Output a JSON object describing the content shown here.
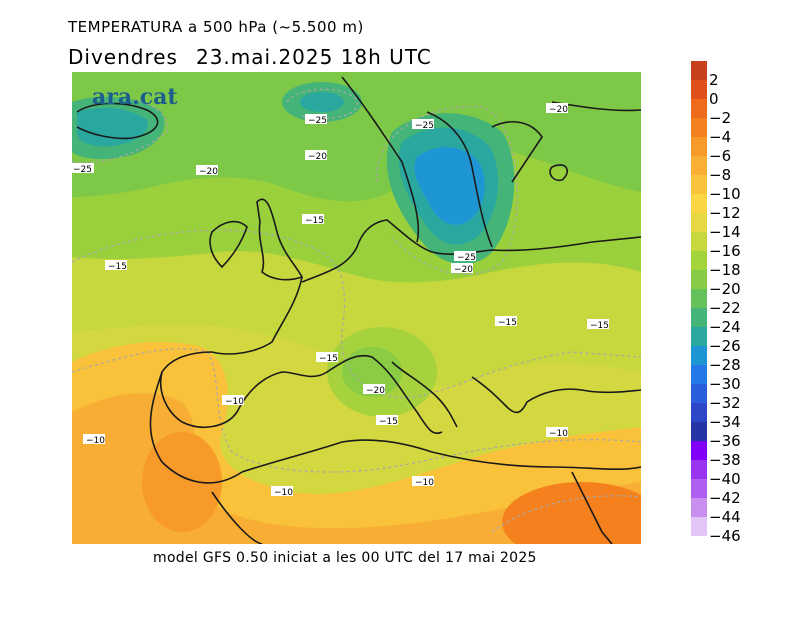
{
  "title": {
    "line1": "TEMPERATURA a 500 hPa (~5.500 m)",
    "day": "Divendres",
    "datetime": "23.mai.2025 18h UTC"
  },
  "logo": "ara.cat",
  "footer": "model GFS 0.50 iniciat a les 00 UTC del 17 mai 2025",
  "scale": [
    {
      "label": "2",
      "color": "#c8401c"
    },
    {
      "label": "0",
      "color": "#e0501c"
    },
    {
      "label": "−2",
      "color": "#ee6a1c"
    },
    {
      "label": "−4",
      "color": "#f4801e"
    },
    {
      "label": "−6",
      "color": "#f89a2a"
    },
    {
      "label": "−8",
      "color": "#f9ae34"
    },
    {
      "label": "−10",
      "color": "#fbc23c"
    },
    {
      "label": "−12",
      "color": "#fad644"
    },
    {
      "label": "−14",
      "color": "#e6d842"
    },
    {
      "label": "−16",
      "color": "#c6d83e"
    },
    {
      "label": "−18",
      "color": "#a4d43c"
    },
    {
      "label": "−20",
      "color": "#86cc44"
    },
    {
      "label": "−22",
      "color": "#64c25a"
    },
    {
      "label": "−24",
      "color": "#44b478"
    },
    {
      "label": "−26",
      "color": "#2aa8a0"
    },
    {
      "label": "−28",
      "color": "#1e96d4"
    },
    {
      "label": "−30",
      "color": "#2478e8"
    },
    {
      "label": "−32",
      "color": "#2a5edc"
    },
    {
      "label": "−34",
      "color": "#2c48c8"
    },
    {
      "label": "−36",
      "color": "#2434a4"
    },
    {
      "label": "−38",
      "color": "#8000f8"
    },
    {
      "label": "−40",
      "color": "#9a34f0"
    },
    {
      "label": "−42",
      "color": "#b060f0"
    },
    {
      "label": "−44",
      "color": "#c88ef0"
    },
    {
      "label": "−46",
      "color": "#e2c6f8"
    }
  ],
  "contour_labels": {
    "l1": "−25",
    "l2": "−25",
    "l3": "−20",
    "l4": "−20",
    "l5": "−25",
    "l6": "−20",
    "l7": "−15",
    "l8": "−15",
    "l9": "−25",
    "l10": "−20",
    "l11": "−15",
    "l12": "−15",
    "l13": "−15",
    "l14": "−20",
    "l15": "−10",
    "l16": "−15",
    "l17": "−10",
    "l18": "−10",
    "l19": "−10",
    "l20": "−10"
  }
}
